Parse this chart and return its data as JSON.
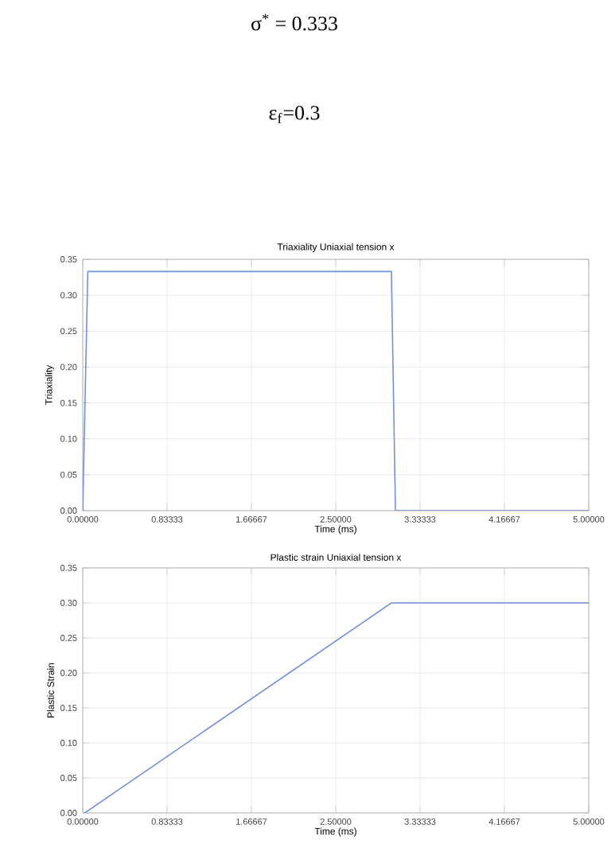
{
  "chart_data": [
    {
      "type": "line",
      "title": "Triaxiality Uniaxial tension x",
      "xlabel": "Time (ms)",
      "ylabel": "Triaxiality",
      "annotations": [
        "σ$^{*}$ = 0.333",
        "ε$_{f}$=0.3"
      ],
      "grid": true,
      "x": [
        0,
        0.05,
        3.05,
        3.09,
        5
      ],
      "series": [
        {
          "color": "#6f8fe0",
          "values": [
            0,
            0.333,
            0.333,
            0,
            0
          ]
        }
      ],
      "xlim": [
        0,
        5
      ],
      "ylim": [
        0,
        0.35
      ],
      "xticks": [
        {
          "value": 0,
          "label": "0.00000"
        },
        {
          "value": 0.83333,
          "label": "0.83333"
        },
        {
          "value": 1.66667,
          "label": "1.66667"
        },
        {
          "value": 2.5,
          "label": "2.50000"
        },
        {
          "value": 3.33333,
          "label": "3.33333"
        },
        {
          "value": 4.16667,
          "label": "4.16667"
        },
        {
          "value": 5,
          "label": "5.00000"
        }
      ],
      "yticks": [
        {
          "value": 0,
          "label": "0.00"
        },
        {
          "value": 0.05,
          "label": "0.05"
        },
        {
          "value": 0.1,
          "label": "0.10"
        },
        {
          "value": 0.15,
          "label": "0.15"
        },
        {
          "value": 0.2,
          "label": "0.20"
        },
        {
          "value": 0.25,
          "label": "0.25"
        },
        {
          "value": 0.3,
          "label": "0.30"
        },
        {
          "value": 0.35,
          "label": "0.35"
        }
      ]
    },
    {
      "type": "line",
      "title": "Plastic strain Uniaxial tension x",
      "xlabel": "Time (ms)",
      "ylabel": "Plastic Strain",
      "grid": true,
      "x": [
        0.02,
        3.05,
        5
      ],
      "series": [
        {
          "color": "#6f8fe0",
          "values": [
            0,
            0.3,
            0.3
          ]
        }
      ],
      "xlim": [
        0,
        5
      ],
      "ylim": [
        0,
        0.35
      ],
      "xticks": [
        {
          "value": 0,
          "label": "0.00000"
        },
        {
          "value": 0.83333,
          "label": "0.83333"
        },
        {
          "value": 1.66667,
          "label": "1.66667"
        },
        {
          "value": 2.5,
          "label": "2.50000"
        },
        {
          "value": 3.33333,
          "label": "3.33333"
        },
        {
          "value": 4.16667,
          "label": "4.16667"
        },
        {
          "value": 5,
          "label": "5.00000"
        }
      ],
      "yticks": [
        {
          "value": 0,
          "label": "0.00"
        },
        {
          "value": 0.05,
          "label": "0.05"
        },
        {
          "value": 0.1,
          "label": "0.10"
        },
        {
          "value": 0.15,
          "label": "0.15"
        },
        {
          "value": 0.2,
          "label": "0.20"
        },
        {
          "value": 0.25,
          "label": "0.25"
        },
        {
          "value": 0.3,
          "label": "0.30"
        },
        {
          "value": 0.35,
          "label": "0.35"
        }
      ]
    }
  ]
}
